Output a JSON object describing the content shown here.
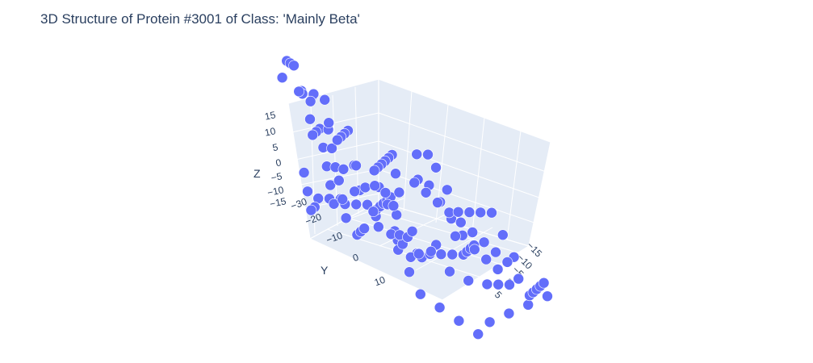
{
  "title": "3D Structure of Protein #3001 of Class: 'Mainly Beta'",
  "chart_data": {
    "type": "scatter3d",
    "title": "3D Structure of Protein #3001 of Class: 'Mainly Beta'",
    "xlabel": "",
    "ylabel": "Y",
    "zlabel": "Z",
    "marker_color": "#636efa",
    "x_ticks": [
      "−15",
      "−10",
      "−5",
      "0",
      "5"
    ],
    "y_ticks": [
      "−30",
      "−20",
      "−10",
      "0",
      "10"
    ],
    "z_ticks": [
      "15",
      "10",
      "5",
      "0",
      "−5",
      "−10",
      "−15"
    ],
    "ylim": [
      -30,
      15
    ],
    "zlim": [
      -15,
      15
    ],
    "xlim": [
      -15,
      5
    ],
    "points": [
      {
        "x": -8,
        "y": -25,
        "z": 12
      },
      {
        "x": -7,
        "y": -24,
        "z": 13
      },
      {
        "x": -6,
        "y": -23,
        "z": 14
      },
      {
        "x": -5,
        "y": -24,
        "z": 12
      },
      {
        "x": -6,
        "y": -22,
        "z": 10
      },
      {
        "x": -7,
        "y": -21,
        "z": 9
      },
      {
        "x": -8,
        "y": -20,
        "z": 8
      },
      {
        "x": -9,
        "y": -22,
        "z": 7
      },
      {
        "x": -10,
        "y": -24,
        "z": 5
      },
      {
        "x": -11,
        "y": -25,
        "z": 4
      },
      {
        "x": -12,
        "y": -24,
        "z": 2
      },
      {
        "x": -10,
        "y": -23,
        "z": 1
      },
      {
        "x": -9,
        "y": -20,
        "z": 3
      },
      {
        "x": -7,
        "y": -19,
        "z": 4
      },
      {
        "x": -6,
        "y": -18,
        "z": 2
      },
      {
        "x": -5,
        "y": -17,
        "z": 0
      },
      {
        "x": -4,
        "y": -16,
        "z": -1
      },
      {
        "x": -3,
        "y": -15,
        "z": -3
      },
      {
        "x": -2,
        "y": -14,
        "z": -5
      },
      {
        "x": -1,
        "y": -12,
        "z": -6
      },
      {
        "x": 0,
        "y": -11,
        "z": -4
      },
      {
        "x": 1,
        "y": -10,
        "z": -2
      },
      {
        "x": 0,
        "y": -9,
        "z": 0
      },
      {
        "x": -1,
        "y": -8,
        "z": 2
      },
      {
        "x": -2,
        "y": -7,
        "z": 4
      },
      {
        "x": -3,
        "y": -8,
        "z": 6
      },
      {
        "x": -4,
        "y": -9,
        "z": 8
      },
      {
        "x": -5,
        "y": -10,
        "z": 6
      },
      {
        "x": -6,
        "y": -11,
        "z": 4
      },
      {
        "x": -7,
        "y": -12,
        "z": 2
      },
      {
        "x": -8,
        "y": -13,
        "z": 0
      },
      {
        "x": -9,
        "y": -14,
        "z": -2
      },
      {
        "x": -8,
        "y": -12,
        "z": -4
      },
      {
        "x": -7,
        "y": -10,
        "z": -6
      },
      {
        "x": -6,
        "y": -8,
        "z": -8
      },
      {
        "x": -5,
        "y": -6,
        "z": -9
      },
      {
        "x": -4,
        "y": -4,
        "z": -7
      },
      {
        "x": -3,
        "y": -2,
        "z": -5
      },
      {
        "x": -2,
        "y": 0,
        "z": -3
      },
      {
        "x": -1,
        "y": 2,
        "z": -1
      },
      {
        "x": 0,
        "y": 3,
        "z": 1
      },
      {
        "x": 1,
        "y": 4,
        "z": 3
      },
      {
        "x": 2,
        "y": 5,
        "z": 5
      },
      {
        "x": 3,
        "y": 4,
        "z": 7
      },
      {
        "x": 2,
        "y": 2,
        "z": 8
      },
      {
        "x": 1,
        "y": 0,
        "z": 9
      },
      {
        "x": 0,
        "y": -2,
        "z": 10
      },
      {
        "x": -1,
        "y": -4,
        "z": 9
      },
      {
        "x": -2,
        "y": -5,
        "z": 7
      },
      {
        "x": -3,
        "y": -4,
        "z": 5
      },
      {
        "x": -4,
        "y": -3,
        "z": 3
      },
      {
        "x": -5,
        "y": -2,
        "z": 1
      },
      {
        "x": -6,
        "y": -1,
        "z": -1
      },
      {
        "x": -7,
        "y": 0,
        "z": -3
      },
      {
        "x": -8,
        "y": 1,
        "z": -5
      },
      {
        "x": -9,
        "y": 2,
        "z": -7
      },
      {
        "x": -10,
        "y": 3,
        "z": -9
      },
      {
        "x": -9,
        "y": 5,
        "z": -10
      },
      {
        "x": -8,
        "y": 7,
        "z": -11
      },
      {
        "x": -7,
        "y": 8,
        "z": -9
      },
      {
        "x": -6,
        "y": 9,
        "z": -7
      },
      {
        "x": -5,
        "y": 10,
        "z": -5
      },
      {
        "x": -4,
        "y": 11,
        "z": -3
      },
      {
        "x": -3,
        "y": 12,
        "z": -4
      },
      {
        "x": -2,
        "y": 10,
        "z": -6
      },
      {
        "x": -1,
        "y": 8,
        "z": -8
      },
      {
        "x": 0,
        "y": 6,
        "z": -10
      },
      {
        "x": 1,
        "y": 5,
        "z": -12
      },
      {
        "x": 2,
        "y": 3,
        "z": -10
      },
      {
        "x": 3,
        "y": 1,
        "z": -8
      },
      {
        "x": 4,
        "y": -1,
        "z": -6
      },
      {
        "x": 3,
        "y": -3,
        "z": -4
      },
      {
        "x": 2,
        "y": -5,
        "z": -2
      },
      {
        "x": 1,
        "y": -6,
        "z": 0
      },
      {
        "x": 0,
        "y": -7,
        "z": -2
      },
      {
        "x": -1,
        "y": -6,
        "z": -4
      },
      {
        "x": -2,
        "y": -4,
        "z": -6
      },
      {
        "x": -3,
        "y": -6,
        "z": -8
      },
      {
        "x": -4,
        "y": -8,
        "z": -6
      },
      {
        "x": -5,
        "y": -12,
        "z": -5
      },
      {
        "x": -6,
        "y": -15,
        "z": -4
      },
      {
        "x": -7,
        "y": -17,
        "z": -2
      },
      {
        "x": -10,
        "y": -18,
        "z": 2
      },
      {
        "x": -11,
        "y": -19,
        "z": 0
      },
      {
        "x": -12,
        "y": -20,
        "z": -2
      },
      {
        "x": -13,
        "y": -21,
        "z": -4
      },
      {
        "x": -12,
        "y": -18,
        "z": -6
      },
      {
        "x": -11,
        "y": -15,
        "z": -7
      },
      {
        "x": -10,
        "y": -12,
        "z": -8
      },
      {
        "x": -9,
        "y": -9,
        "z": -10
      },
      {
        "x": -8,
        "y": -6,
        "z": -11
      },
      {
        "x": -7,
        "y": -3,
        "z": -12
      },
      {
        "x": -6,
        "y": 0,
        "z": -11
      },
      {
        "x": -5,
        "y": 3,
        "z": -9
      },
      {
        "x": -4,
        "y": 5,
        "z": -7
      },
      {
        "x": -3,
        "y": 7,
        "z": -5
      },
      {
        "x": -2,
        "y": 6,
        "z": -2
      },
      {
        "x": -1,
        "y": 5,
        "z": 0
      },
      {
        "x": 0,
        "y": 4,
        "z": 2
      },
      {
        "x": 1,
        "y": 2,
        "z": 4
      },
      {
        "x": 2,
        "y": 0,
        "z": 2
      },
      {
        "x": 3,
        "y": -2,
        "z": 0
      },
      {
        "x": 4,
        "y": -4,
        "z": 2
      },
      {
        "x": 5,
        "y": -6,
        "z": 4
      },
      {
        "x": 4,
        "y": -8,
        "z": 6
      },
      {
        "x": 3,
        "y": -10,
        "z": 4
      },
      {
        "x": 2,
        "y": -12,
        "z": 2
      },
      {
        "x": 1,
        "y": -14,
        "z": 0
      },
      {
        "x": 0,
        "y": -15,
        "z": 2
      },
      {
        "x": -1,
        "y": -16,
        "z": 4
      },
      {
        "x": -2,
        "y": -17,
        "z": 6
      },
      {
        "x": -3,
        "y": -18,
        "z": 8
      },
      {
        "x": -4,
        "y": -19,
        "z": 6
      },
      {
        "x": -5,
        "y": -20,
        "z": 4
      },
      {
        "x": -4,
        "y": -14,
        "z": 3
      },
      {
        "x": -3,
        "y": -12,
        "z": 1
      },
      {
        "x": -2,
        "y": -10,
        "z": -1
      },
      {
        "x": -1,
        "y": -9,
        "z": 1
      },
      {
        "x": 0,
        "y": -8,
        "z": 3
      },
      {
        "x": 1,
        "y": -7,
        "z": 5
      },
      {
        "x": 2,
        "y": -6,
        "z": 7
      },
      {
        "x": 3,
        "y": -7,
        "z": 9
      },
      {
        "x": 4,
        "y": -9,
        "z": 8
      },
      {
        "x": 5,
        "y": -11,
        "z": 6
      },
      {
        "x": 4,
        "y": -13,
        "z": 4
      },
      {
        "x": 3,
        "y": -15,
        "z": 2
      },
      {
        "x": 2,
        "y": -16,
        "z": -1
      },
      {
        "x": 1,
        "y": -17,
        "z": -3
      },
      {
        "x": 0,
        "y": -18,
        "z": -1
      },
      {
        "x": -1,
        "y": -19,
        "z": 1
      },
      {
        "x": -6,
        "y": 6,
        "z": -3
      },
      {
        "x": -7,
        "y": 4,
        "z": -1
      },
      {
        "x": -8,
        "y": 2,
        "z": 1
      },
      {
        "x": -9,
        "y": 0,
        "z": -1
      },
      {
        "x": -10,
        "y": -2,
        "z": -3
      },
      {
        "x": -11,
        "y": -4,
        "z": -5
      },
      {
        "x": -12,
        "y": -6,
        "z": -3
      },
      {
        "x": -13,
        "y": -8,
        "z": -1
      },
      {
        "x": -12,
        "y": -10,
        "z": 1
      },
      {
        "x": -11,
        "y": -8,
        "z": 3
      }
    ]
  }
}
